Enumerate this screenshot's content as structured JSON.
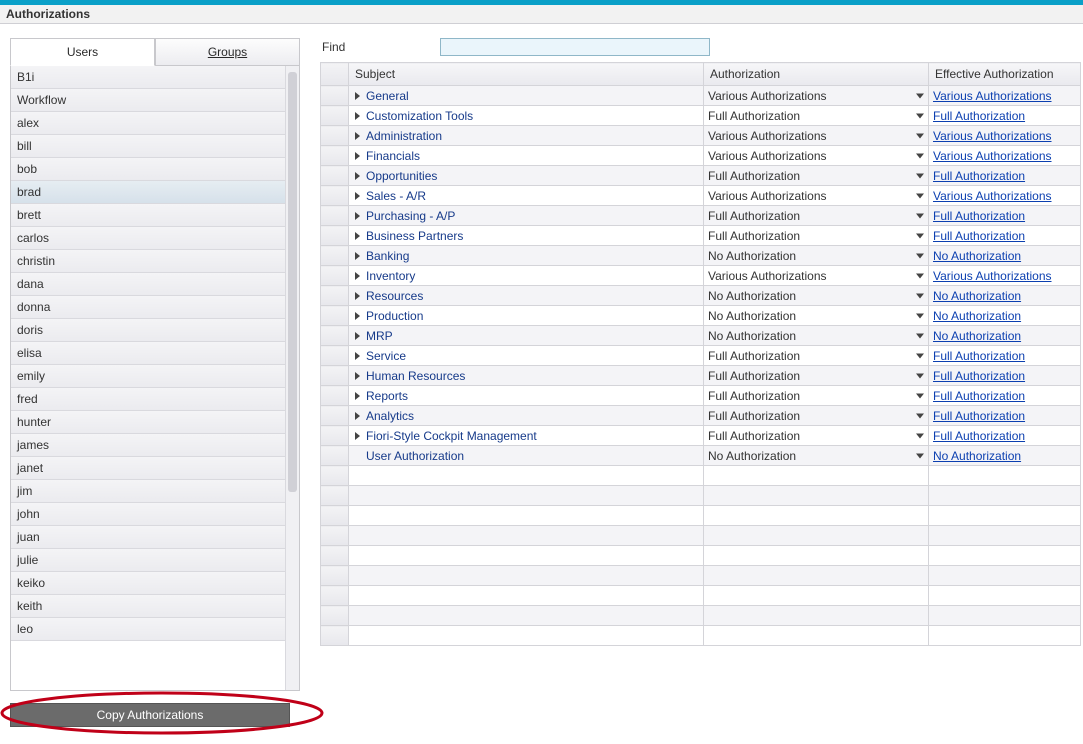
{
  "window": {
    "title": "Authorizations"
  },
  "tabs": {
    "users": "Users",
    "groups": "Groups",
    "active": "users"
  },
  "users": [
    "B1i",
    "Workflow",
    "alex",
    "bill",
    "bob",
    "brad",
    "brett",
    "carlos",
    "christin",
    "dana",
    "donna",
    "doris",
    "elisa",
    "emily",
    "fred",
    "hunter",
    "james",
    "janet",
    "jim",
    "john",
    "juan",
    "julie",
    "keiko",
    "keith",
    "leo"
  ],
  "selected_user": "brad",
  "copy_button": "Copy Authorizations",
  "find": {
    "label": "Find",
    "value": ""
  },
  "grid": {
    "columns": {
      "subject": "Subject",
      "authorization": "Authorization",
      "effective": "Effective Authorization"
    },
    "rows": [
      {
        "subject": "General",
        "expandable": true,
        "auth": "Various Authorizations",
        "eff": "Various Authorizations"
      },
      {
        "subject": "Customization Tools",
        "expandable": true,
        "auth": "Full Authorization",
        "eff": "Full Authorization"
      },
      {
        "subject": "Administration",
        "expandable": true,
        "auth": "Various Authorizations",
        "eff": "Various Authorizations"
      },
      {
        "subject": "Financials",
        "expandable": true,
        "auth": "Various Authorizations",
        "eff": "Various Authorizations"
      },
      {
        "subject": "Opportunities",
        "expandable": true,
        "auth": "Full Authorization",
        "eff": "Full Authorization"
      },
      {
        "subject": "Sales - A/R",
        "expandable": true,
        "auth": "Various Authorizations",
        "eff": "Various Authorizations"
      },
      {
        "subject": "Purchasing - A/P",
        "expandable": true,
        "auth": "Full Authorization",
        "eff": "Full Authorization"
      },
      {
        "subject": "Business Partners",
        "expandable": true,
        "auth": "Full Authorization",
        "eff": "Full Authorization"
      },
      {
        "subject": "Banking",
        "expandable": true,
        "auth": "No Authorization",
        "eff": "No Authorization"
      },
      {
        "subject": "Inventory",
        "expandable": true,
        "auth": "Various Authorizations",
        "eff": "Various Authorizations"
      },
      {
        "subject": "Resources",
        "expandable": true,
        "auth": "No Authorization",
        "eff": "No Authorization"
      },
      {
        "subject": "Production",
        "expandable": true,
        "auth": "No Authorization",
        "eff": "No Authorization"
      },
      {
        "subject": "MRP",
        "expandable": true,
        "auth": "No Authorization",
        "eff": "No Authorization"
      },
      {
        "subject": "Service",
        "expandable": true,
        "auth": "Full Authorization",
        "eff": "Full Authorization"
      },
      {
        "subject": "Human Resources",
        "expandable": true,
        "auth": "Full Authorization",
        "eff": "Full Authorization"
      },
      {
        "subject": "Reports",
        "expandable": true,
        "auth": "Full Authorization",
        "eff": "Full Authorization"
      },
      {
        "subject": "Analytics",
        "expandable": true,
        "auth": "Full Authorization",
        "eff": "Full Authorization"
      },
      {
        "subject": "Fiori-Style Cockpit Management",
        "expandable": true,
        "auth": "Full Authorization",
        "eff": "Full Authorization"
      },
      {
        "subject": "User Authorization",
        "expandable": false,
        "auth": "No Authorization",
        "eff": "No Authorization"
      }
    ],
    "empty_rows": 9
  },
  "annotation": {
    "ellipse_stroke": "#c00018",
    "ellipse_width": 3
  }
}
